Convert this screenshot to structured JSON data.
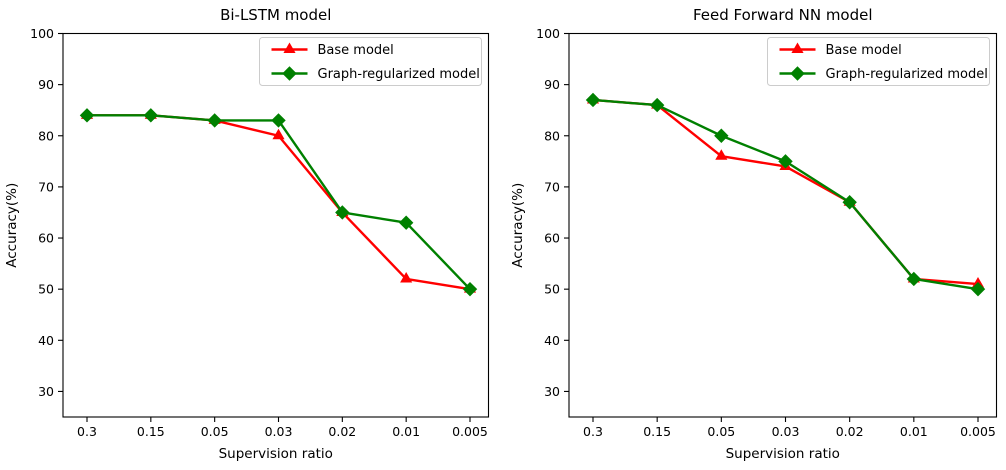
{
  "figure": {
    "background": "#ffffff",
    "text_color": "#000000",
    "legend_border_color": "#cccccc",
    "legend_background": "#ffffff"
  },
  "chart_data": [
    {
      "type": "line",
      "title": "Bi-LSTM model",
      "xlabel": "Supervision ratio",
      "ylabel": "Accuracy(%)",
      "categories": [
        "0.3",
        "0.15",
        "0.05",
        "0.03",
        "0.02",
        "0.01",
        "0.005"
      ],
      "yticks": [
        30,
        40,
        50,
        60,
        70,
        80,
        90,
        100
      ],
      "ylim": [
        25,
        100
      ],
      "grid": false,
      "legend_position": "upper right",
      "series": [
        {
          "name": "Base model",
          "color": "#ff0000",
          "marker": "triangle",
          "values": [
            84,
            84,
            83,
            80,
            65,
            52,
            50
          ]
        },
        {
          "name": "Graph-regularized model",
          "color": "#008000",
          "marker": "diamond",
          "values": [
            84,
            84,
            83,
            83,
            65,
            63,
            50
          ]
        }
      ]
    },
    {
      "type": "line",
      "title": "Feed Forward NN model",
      "xlabel": "Supervision ratio",
      "ylabel": "Accuracy(%)",
      "categories": [
        "0.3",
        "0.15",
        "0.05",
        "0.03",
        "0.02",
        "0.01",
        "0.005"
      ],
      "yticks": [
        30,
        40,
        50,
        60,
        70,
        80,
        90,
        100
      ],
      "ylim": [
        25,
        100
      ],
      "grid": false,
      "legend_position": "upper right",
      "series": [
        {
          "name": "Base model",
          "color": "#ff0000",
          "marker": "triangle",
          "values": [
            87,
            86,
            76,
            74,
            67,
            52,
            51
          ]
        },
        {
          "name": "Graph-regularized model",
          "color": "#008000",
          "marker": "diamond",
          "values": [
            87,
            86,
            80,
            75,
            67,
            52,
            50
          ]
        }
      ]
    }
  ]
}
